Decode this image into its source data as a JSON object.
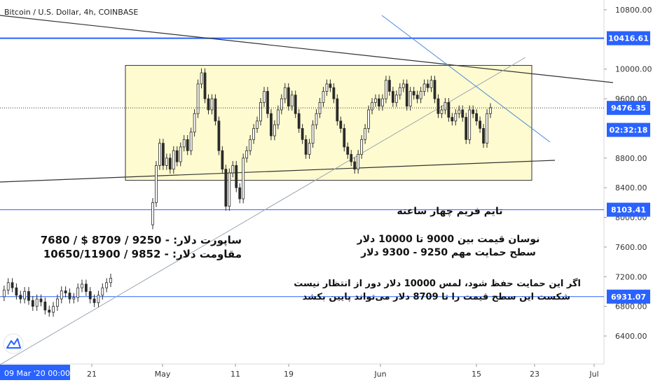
{
  "header": {
    "symbol_title": "Bitcoin / U.S. Dollar, 4h, COINBASE"
  },
  "chart_data": {
    "type": "candlestick",
    "title": "Bitcoin / U.S. Dollar, 4h, COINBASE",
    "xlabel": "",
    "ylabel": "",
    "ylim": [
      6150,
      10950
    ],
    "y_ticks": [
      "10800.00",
      "10000.00",
      "9600.00",
      "8800.00",
      "8400.00",
      "8000.00",
      "7600.00",
      "7200.00",
      "6800.00",
      "6400.00"
    ],
    "x_ticks": [
      "21",
      "May",
      "11",
      "19",
      "Jun",
      "15",
      "23",
      "Jul"
    ],
    "crosshair_date": "09 Mar '20  00:00",
    "price_labels": [
      {
        "text": "10416.61",
        "value": 10416.61,
        "color": "#2962ff"
      },
      {
        "text": "9476.35",
        "value": 9476.35,
        "color": "#2962ff"
      },
      {
        "text": "02:32:18",
        "value": 9180,
        "color": "#2962ff"
      },
      {
        "text": "8103.41",
        "value": 8103.41,
        "color": "#2962ff"
      },
      {
        "text": "6931.07",
        "value": 6931.07,
        "color": "#2962ff"
      }
    ],
    "horizontal_levels": [
      10416.61,
      8103.41,
      6931.07
    ],
    "current_price": 9476.35,
    "range_box": {
      "y_top": 10050,
      "y_bottom": 8500,
      "fill": "#fffbd0"
    },
    "price_path": [
      [
        6930,
        7020,
        7120,
        7050,
        6950,
        6900,
        7000,
        6880,
        6800,
        6900,
        6860,
        6750,
        6720,
        6800,
        6900,
        7010,
        6980,
        6900,
        6920,
        7050,
        7100,
        7000,
        6900,
        6850,
        6950,
        7050,
        7120,
        7180
      ],
      [
        7900,
        8200,
        8700,
        9000,
        8700,
        8800,
        8650,
        8900,
        8750,
        8950,
        9050,
        8900,
        9150,
        9400,
        9800,
        9950,
        9600,
        9450,
        9600,
        9300,
        8900,
        8650,
        8150,
        8600,
        8700,
        8400,
        8250,
        8800,
        8900,
        9050,
        9200,
        9300,
        9550,
        9700,
        9400,
        9100,
        9250,
        9450,
        9600,
        9750,
        9500,
        9650,
        9400,
        9200,
        9050,
        8850,
        9000,
        9250,
        9400,
        9550,
        9700,
        9800,
        9750,
        9600,
        9300,
        9200,
        8950,
        8850,
        8750,
        8650,
        8850,
        9050,
        9200,
        9450,
        9550,
        9600,
        9500,
        9600,
        9850,
        9700,
        9550,
        9650,
        9750,
        9800,
        9500,
        9700,
        9650,
        9600,
        9700,
        9800,
        9750,
        9850,
        9600,
        9400,
        9450,
        9550,
        9350,
        9300,
        9400,
        9450,
        9350,
        9050,
        9450,
        9400,
        9300,
        9200,
        9000,
        9400,
        9480
      ],
      [
        9476
      ]
    ],
    "series": [
      {
        "name": "",
        "color": "#2b2b2b",
        "kind": "candles"
      }
    ]
  },
  "annotations": {
    "timeframe": "تایم فریم چهار ساعته",
    "range_line1": "نوسان قیمت  بین 9000 تا 10000 دلار",
    "range_line2": "سطح حمایت مهم 9250  -  9300  دلار",
    "support_line": "7680 / $ 8709 / 9250 - :ساپورت دلار",
    "resistance_line": "10650/11900 / 9852 - :مقاومت دلار",
    "outlook_line1": "اگر این حمایت حفظ شود، لمس 10000 دلار دور از انتظار نیست",
    "outlook_line2": "شکست این سطح قیمت را تا 8709 دلار می‌تواند پایین بکشد"
  },
  "colors": {
    "accent": "#2962ff",
    "trendline_dark": "#333333",
    "trendline_light": "#4a89dc",
    "candle": "#2b2b2b",
    "box_fill": "#fffbd0",
    "box_stroke": "#333333"
  },
  "branding": {
    "logo_icon": "tradingview-logo-icon"
  }
}
